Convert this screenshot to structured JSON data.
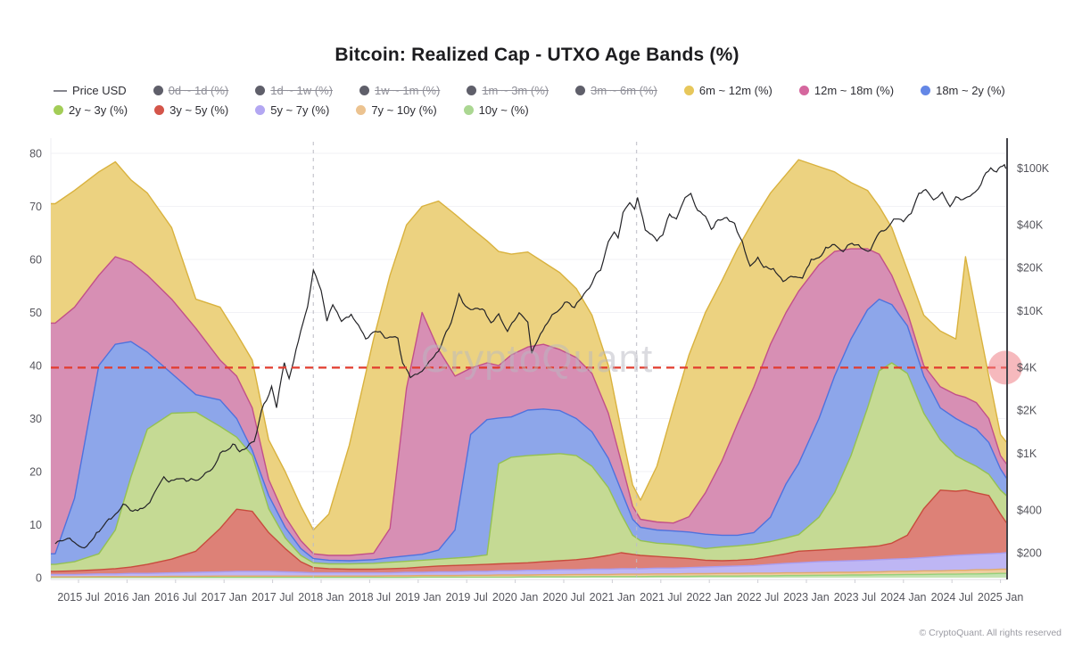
{
  "title": "Bitcoin: Realized Cap - UTXO Age Bands (%)",
  "watermark": "CryptoQuant",
  "footer": "© CryptoQuant. All rights reserved",
  "legend": {
    "items": [
      {
        "label": "Price USD",
        "swatch": "line",
        "color": "#85858d",
        "enabled": true
      },
      {
        "label": "0d ~ 1d (%)",
        "swatch": "dot",
        "color": "#5f5f6a",
        "enabled": false
      },
      {
        "label": "1d ~ 1w (%)",
        "swatch": "dot",
        "color": "#5f5f6a",
        "enabled": false
      },
      {
        "label": "1w ~ 1m (%)",
        "swatch": "dot",
        "color": "#5f5f6a",
        "enabled": false
      },
      {
        "label": "1m ~ 3m (%)",
        "swatch": "dot",
        "color": "#5f5f6a",
        "enabled": false
      },
      {
        "label": "3m ~ 6m (%)",
        "swatch": "dot",
        "color": "#5f5f6a",
        "enabled": false
      },
      {
        "label": "6m ~ 12m (%)",
        "swatch": "dot",
        "color": "#e7c75b",
        "enabled": true
      },
      {
        "label": "12m ~ 18m (%)",
        "swatch": "dot",
        "color": "#d5679e",
        "enabled": true
      },
      {
        "label": "18m ~ 2y (%)",
        "swatch": "dot",
        "color": "#6487e6",
        "enabled": true
      },
      {
        "label": "2y ~ 3y (%)",
        "swatch": "dot",
        "color": "#a3cd57",
        "enabled": true
      },
      {
        "label": "3y ~ 5y (%)",
        "swatch": "dot",
        "color": "#d4554a",
        "enabled": true
      },
      {
        "label": "5y ~ 7y (%)",
        "swatch": "dot",
        "color": "#b3a7f2",
        "enabled": true
      },
      {
        "label": "7y ~ 10y (%)",
        "swatch": "dot",
        "color": "#ecc390",
        "enabled": true
      },
      {
        "label": "10y ~ (%)",
        "swatch": "dot",
        "color": "#abd792",
        "enabled": true
      }
    ]
  },
  "chart_data": {
    "type": "area",
    "stacked": true,
    "title": "Bitcoin: Realized Cap - UTXO Age Bands (%)",
    "x_ticks": {
      "labels": [
        "2015 Jul",
        "2016 Jan",
        "2016 Jul",
        "2017 Jan",
        "2017 Jul",
        "2018 Jan",
        "2018 Jul",
        "2019 Jan",
        "2019 Jul",
        "2020 Jan",
        "2020 Jul",
        "2021 Jan",
        "2021 Jul",
        "2022 Jan",
        "2022 Jul",
        "2023 Jan",
        "2023 Jul",
        "2024 Jan",
        "2024 Jul",
        "2025 Jan"
      ],
      "start_t": 2015.54,
      "step": 0.5
    },
    "left_axis": {
      "unit": "%",
      "ticks": [
        0,
        10,
        20,
        30,
        40,
        50,
        60,
        70,
        80
      ],
      "range": [
        0,
        83
      ]
    },
    "right_axis": {
      "unit": "USD",
      "scale": "log",
      "ticks": [
        {
          "label": "$100K",
          "value": 100000
        },
        {
          "label": "$40K",
          "value": 40000
        },
        {
          "label": "$20K",
          "value": 20000
        },
        {
          "label": "$10K",
          "value": 10000
        },
        {
          "label": "$4K",
          "value": 4000
        },
        {
          "label": "$2K",
          "value": 2000
        },
        {
          "label": "$1K",
          "value": 1000
        },
        {
          "label": "$400",
          "value": 400
        },
        {
          "label": "$200",
          "value": 200
        }
      ]
    },
    "threshold_line": {
      "value": 39.6,
      "color": "#e23b2e",
      "style": "dashed"
    },
    "end_marker": {
      "value": 39.6,
      "color": "rgba(239,128,134,0.55)"
    },
    "vertical_markers": [
      2017.96,
      2021.29
    ],
    "bands_t": [
      2015.3,
      2015.5,
      2015.75,
      2015.92,
      2016.08,
      2016.25,
      2016.5,
      2016.75,
      2017.0,
      2017.17,
      2017.33,
      2017.5,
      2017.67,
      2017.83,
      2017.96,
      2018.12,
      2018.33,
      2018.58,
      2018.75,
      2018.92,
      2019.08,
      2019.25,
      2019.42,
      2019.58,
      2019.75,
      2019.87,
      2020.0,
      2020.17,
      2020.33,
      2020.5,
      2020.67,
      2020.83,
      2021.0,
      2021.13,
      2021.25,
      2021.33,
      2021.5,
      2021.67,
      2021.83,
      2022.0,
      2022.17,
      2022.33,
      2022.5,
      2022.67,
      2022.83,
      2022.96,
      2023.17,
      2023.33,
      2023.5,
      2023.67,
      2023.79,
      2023.92,
      2024.08,
      2024.25,
      2024.42,
      2024.58,
      2024.68,
      2024.79,
      2024.92,
      2025.04,
      2025.1
    ],
    "series": [
      {
        "name": "10y ~ (%)",
        "fill": "#c3e3b2",
        "line": "#94d07a",
        "values": [
          0.05,
          0.05,
          0.05,
          0.05,
          0.05,
          0.05,
          0.05,
          0.05,
          0.05,
          0.05,
          0.05,
          0.05,
          0.05,
          0.05,
          0.05,
          0.05,
          0.05,
          0.05,
          0.05,
          0.05,
          0.1,
          0.1,
          0.1,
          0.1,
          0.1,
          0.1,
          0.1,
          0.15,
          0.15,
          0.15,
          0.15,
          0.2,
          0.2,
          0.2,
          0.2,
          0.2,
          0.25,
          0.25,
          0.25,
          0.3,
          0.3,
          0.3,
          0.35,
          0.35,
          0.4,
          0.4,
          0.45,
          0.45,
          0.5,
          0.5,
          0.55,
          0.55,
          0.6,
          0.6,
          0.65,
          0.65,
          0.7,
          0.7,
          0.75,
          0.8,
          0.8
        ]
      },
      {
        "name": "7y ~ 10y (%)",
        "fill": "#efcd9f",
        "line": "#e2a96a",
        "values": [
          0.1,
          0.1,
          0.15,
          0.15,
          0.15,
          0.15,
          0.2,
          0.2,
          0.25,
          0.25,
          0.25,
          0.25,
          0.25,
          0.25,
          0.25,
          0.25,
          0.25,
          0.25,
          0.3,
          0.3,
          0.3,
          0.3,
          0.3,
          0.35,
          0.35,
          0.4,
          0.4,
          0.35,
          0.4,
          0.4,
          0.45,
          0.4,
          0.4,
          0.45,
          0.45,
          0.45,
          0.45,
          0.45,
          0.5,
          0.45,
          0.5,
          0.5,
          0.5,
          0.5,
          0.5,
          0.5,
          0.5,
          0.55,
          0.5,
          0.6,
          0.55,
          0.65,
          0.6,
          0.7,
          0.65,
          0.75,
          0.7,
          0.8,
          0.75,
          0.8,
          0.8
        ]
      },
      {
        "name": "5y ~ 7y (%)",
        "fill": "#beb6f4",
        "line": "#a99df0",
        "values": [
          0.45,
          0.45,
          0.5,
          0.5,
          0.6,
          0.6,
          0.65,
          0.75,
          0.8,
          0.9,
          0.9,
          0.9,
          0.8,
          0.7,
          0.6,
          0.6,
          0.6,
          0.6,
          0.55,
          0.65,
          0.6,
          0.7,
          0.7,
          0.75,
          0.75,
          0.8,
          0.8,
          0.9,
          0.85,
          0.95,
          0.9,
          1.0,
          1.0,
          1.05,
          1.05,
          1.05,
          1.1,
          1.1,
          1.15,
          1.25,
          1.3,
          1.4,
          1.45,
          1.65,
          1.8,
          1.9,
          2.05,
          2.1,
          2.2,
          2.2,
          2.3,
          2.3,
          2.4,
          2.5,
          2.7,
          2.8,
          2.9,
          2.9,
          3.0,
          3.0,
          3.1
        ]
      },
      {
        "name": "3y ~ 5y (%)",
        "fill": "#dd8177",
        "line": "#c84b3d",
        "values": [
          0.6,
          0.7,
          0.8,
          1.0,
          1.2,
          1.7,
          2.6,
          4.0,
          8.2,
          11.7,
          11.3,
          7.3,
          4.4,
          2.0,
          1.0,
          0.8,
          0.7,
          0.7,
          0.8,
          0.8,
          1.0,
          1.1,
          1.2,
          1.2,
          1.3,
          1.3,
          1.4,
          1.4,
          1.6,
          1.7,
          1.9,
          2.1,
          2.6,
          3.0,
          2.7,
          2.5,
          2.2,
          2.0,
          1.7,
          1.3,
          1.1,
          1.1,
          1.2,
          1.5,
          1.8,
          2.2,
          2.2,
          2.3,
          2.4,
          2.5,
          2.6,
          3.0,
          4.4,
          9.2,
          12.5,
          12.1,
          12.2,
          11.6,
          11.0,
          7.4,
          5.7
        ]
      },
      {
        "name": "2y ~ 3y (%)",
        "fill": "#c5da94",
        "line": "#94c153",
        "values": [
          1.3,
          1.7,
          3.0,
          7.3,
          17.0,
          25.5,
          27.5,
          26.2,
          19.2,
          13.6,
          10.5,
          4.5,
          2.0,
          1.2,
          0.9,
          0.9,
          1.0,
          1.1,
          1.2,
          1.3,
          1.3,
          1.3,
          1.4,
          1.5,
          1.8,
          18.9,
          20.0,
          20.2,
          20.2,
          20.2,
          19.6,
          17.3,
          12.8,
          7.3,
          3.6,
          2.8,
          2.5,
          2.5,
          2.4,
          2.2,
          2.6,
          2.7,
          2.8,
          2.8,
          3.0,
          3.1,
          6.2,
          10.6,
          17.4,
          26.2,
          33.0,
          34.0,
          30.5,
          18.0,
          9.5,
          6.7,
          5.5,
          5.0,
          4.0,
          4.5,
          5.1
        ]
      },
      {
        "name": "18m ~ 2y (%)",
        "fill": "#8da6ea",
        "line": "#4e72de",
        "values": [
          2.0,
          12.0,
          35.5,
          35.0,
          25.5,
          14.5,
          7.5,
          3.3,
          5.0,
          3.5,
          1.0,
          2.5,
          2.0,
          1.3,
          0.8,
          0.7,
          0.6,
          0.7,
          0.9,
          1.0,
          1.1,
          1.7,
          5.3,
          23.1,
          25.5,
          8.6,
          7.6,
          8.6,
          8.6,
          8.1,
          7.0,
          6.5,
          5.5,
          4.5,
          3.0,
          2.5,
          2.5,
          2.5,
          2.6,
          2.7,
          2.2,
          2.0,
          2.2,
          4.6,
          10.2,
          13.4,
          18.6,
          22.0,
          22.0,
          18.5,
          13.5,
          11.0,
          9.0,
          7.0,
          6.0,
          7.0,
          7.0,
          7.0,
          6.0,
          4.0,
          3.3
        ]
      },
      {
        "name": "12m ~ 18m (%)",
        "fill": "#d78fb4",
        "line": "#c25089",
        "values": [
          43.5,
          36.0,
          17.0,
          16.5,
          15.0,
          14.5,
          14.0,
          12.5,
          7.5,
          8.0,
          8.0,
          3.0,
          2.0,
          1.5,
          0.9,
          0.9,
          1.0,
          1.2,
          5.5,
          31.6,
          45.6,
          37.8,
          29.0,
          12.5,
          10.7,
          9.9,
          11.7,
          11.9,
          12.2,
          11.5,
          11.5,
          11.0,
          8.5,
          5.5,
          2.5,
          1.5,
          1.5,
          1.5,
          2.9,
          7.8,
          14.0,
          21.0,
          27.5,
          32.6,
          32.3,
          32.5,
          29.0,
          23.5,
          17.0,
          11.5,
          8.5,
          5.5,
          2.5,
          2.0,
          4.0,
          4.5,
          5.0,
          5.0,
          4.5,
          2.5,
          2.7
        ]
      },
      {
        "name": "6m ~ 12m (%)",
        "fill": "#ecd280",
        "line": "#d9b23e",
        "values": [
          22.5,
          22.0,
          19.5,
          17.9,
          15.5,
          15.5,
          13.5,
          5.5,
          10.0,
          8.0,
          9.0,
          7.5,
          8.5,
          6.5,
          4.5,
          7.8,
          20.8,
          40.4,
          47.7,
          30.8,
          20.0,
          28.0,
          30.5,
          26.5,
          23.0,
          21.5,
          19.0,
          17.9,
          15.5,
          14.5,
          13.0,
          11.0,
          9.0,
          6.0,
          4.0,
          3.6,
          10.5,
          21.7,
          30.5,
          34.0,
          34.0,
          33.0,
          31.5,
          28.5,
          26.0,
          24.8,
          18.5,
          15.0,
          12.5,
          11.0,
          9.0,
          9.0,
          8.0,
          9.5,
          10.5,
          10.5,
          26.5,
          17.0,
          8.0,
          4.0,
          4.1
        ]
      }
    ],
    "price": {
      "name": "Price USD",
      "color": "#232327",
      "t": [
        2015.3,
        2015.45,
        2015.6,
        2015.7,
        2015.83,
        2015.92,
        2016.0,
        2016.1,
        2016.25,
        2016.42,
        2016.47,
        2016.55,
        2016.75,
        2016.92,
        2017.0,
        2017.13,
        2017.2,
        2017.35,
        2017.45,
        2017.53,
        2017.58,
        2017.66,
        2017.71,
        2017.83,
        2017.9,
        2017.96,
        2018.04,
        2018.1,
        2018.16,
        2018.25,
        2018.35,
        2018.5,
        2018.6,
        2018.72,
        2018.83,
        2018.88,
        2018.96,
        2019.08,
        2019.25,
        2019.38,
        2019.46,
        2019.5,
        2019.58,
        2019.7,
        2019.79,
        2019.87,
        2019.96,
        2020.08,
        2020.17,
        2020.21,
        2020.3,
        2020.42,
        2020.55,
        2020.65,
        2020.75,
        2020.83,
        2020.92,
        2021.0,
        2021.06,
        2021.1,
        2021.15,
        2021.22,
        2021.27,
        2021.3,
        2021.38,
        2021.5,
        2021.56,
        2021.63,
        2021.7,
        2021.79,
        2021.85,
        2021.92,
        2022.0,
        2022.06,
        2022.13,
        2022.22,
        2022.3,
        2022.38,
        2022.46,
        2022.54,
        2022.6,
        2022.7,
        2022.8,
        2022.88,
        2023.0,
        2023.09,
        2023.17,
        2023.24,
        2023.33,
        2023.42,
        2023.51,
        2023.6,
        2023.7,
        2023.79,
        2023.86,
        2023.94,
        2024.04,
        2024.12,
        2024.2,
        2024.27,
        2024.35,
        2024.44,
        2024.52,
        2024.58,
        2024.63,
        2024.7,
        2024.78,
        2024.84,
        2024.89,
        2024.94,
        2025.0,
        2025.04,
        2025.08,
        2025.1
      ],
      "values": [
        235,
        260,
        215,
        255,
        330,
        370,
        430,
        385,
        425,
        690,
        630,
        650,
        640,
        790,
        990,
        1150,
        1020,
        1250,
        2200,
        2900,
        2100,
        4450,
        3300,
        7200,
        10500,
        19000,
        14000,
        8200,
        11000,
        8400,
        9300,
        6400,
        7400,
        6450,
        6300,
        4300,
        3400,
        3700,
        5200,
        8200,
        12800,
        11000,
        10200,
        10300,
        8300,
        9100,
        7200,
        9700,
        8600,
        5000,
        6900,
        9300,
        11400,
        10400,
        13000,
        15800,
        19500,
        29500,
        36500,
        32000,
        47500,
        57000,
        52000,
        62500,
        37000,
        31500,
        34500,
        46500,
        43000,
        60500,
        66500,
        49500,
        46500,
        38000,
        43500,
        45500,
        39500,
        29800,
        20200,
        23800,
        20000,
        19300,
        16400,
        17000,
        16700,
        22800,
        23500,
        28300,
        27800,
        26300,
        30300,
        27800,
        26300,
        34200,
        37500,
        43300,
        42600,
        48500,
        67500,
        70500,
        61500,
        68000,
        55500,
        64000,
        58500,
        62500,
        67500,
        75500,
        91500,
        97000,
        94500,
        99000,
        104000,
        98000
      ]
    }
  }
}
